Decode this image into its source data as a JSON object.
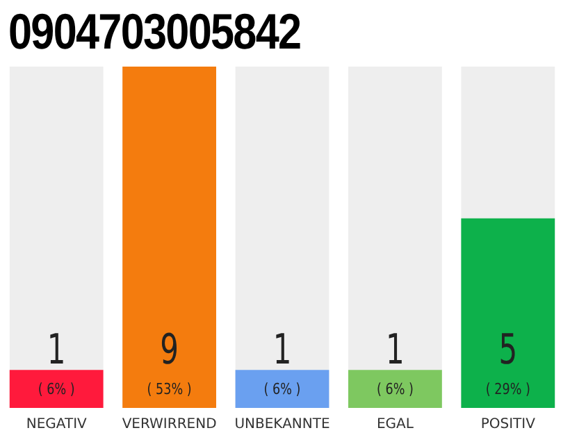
{
  "chart_data": {
    "type": "bar",
    "title": "0904703005842",
    "categories": [
      "NEGATIV",
      "VERWIRREND",
      "UNBEKANNTE",
      "EGAL",
      "POSITIV"
    ],
    "values": [
      1,
      9,
      1,
      1,
      5
    ],
    "colors": [
      "#ff1a3c",
      "#f47c0e",
      "#6aa0f0",
      "#7ec860",
      "#0db14b"
    ],
    "ylim": [
      0,
      9
    ],
    "grid": false,
    "legend": false,
    "tick_labels": "x",
    "data_labels": true,
    "annotations": [
      "( 6% )",
      "( 53% )",
      "( 6% )",
      "( 6% )",
      "( 29% )"
    ]
  }
}
